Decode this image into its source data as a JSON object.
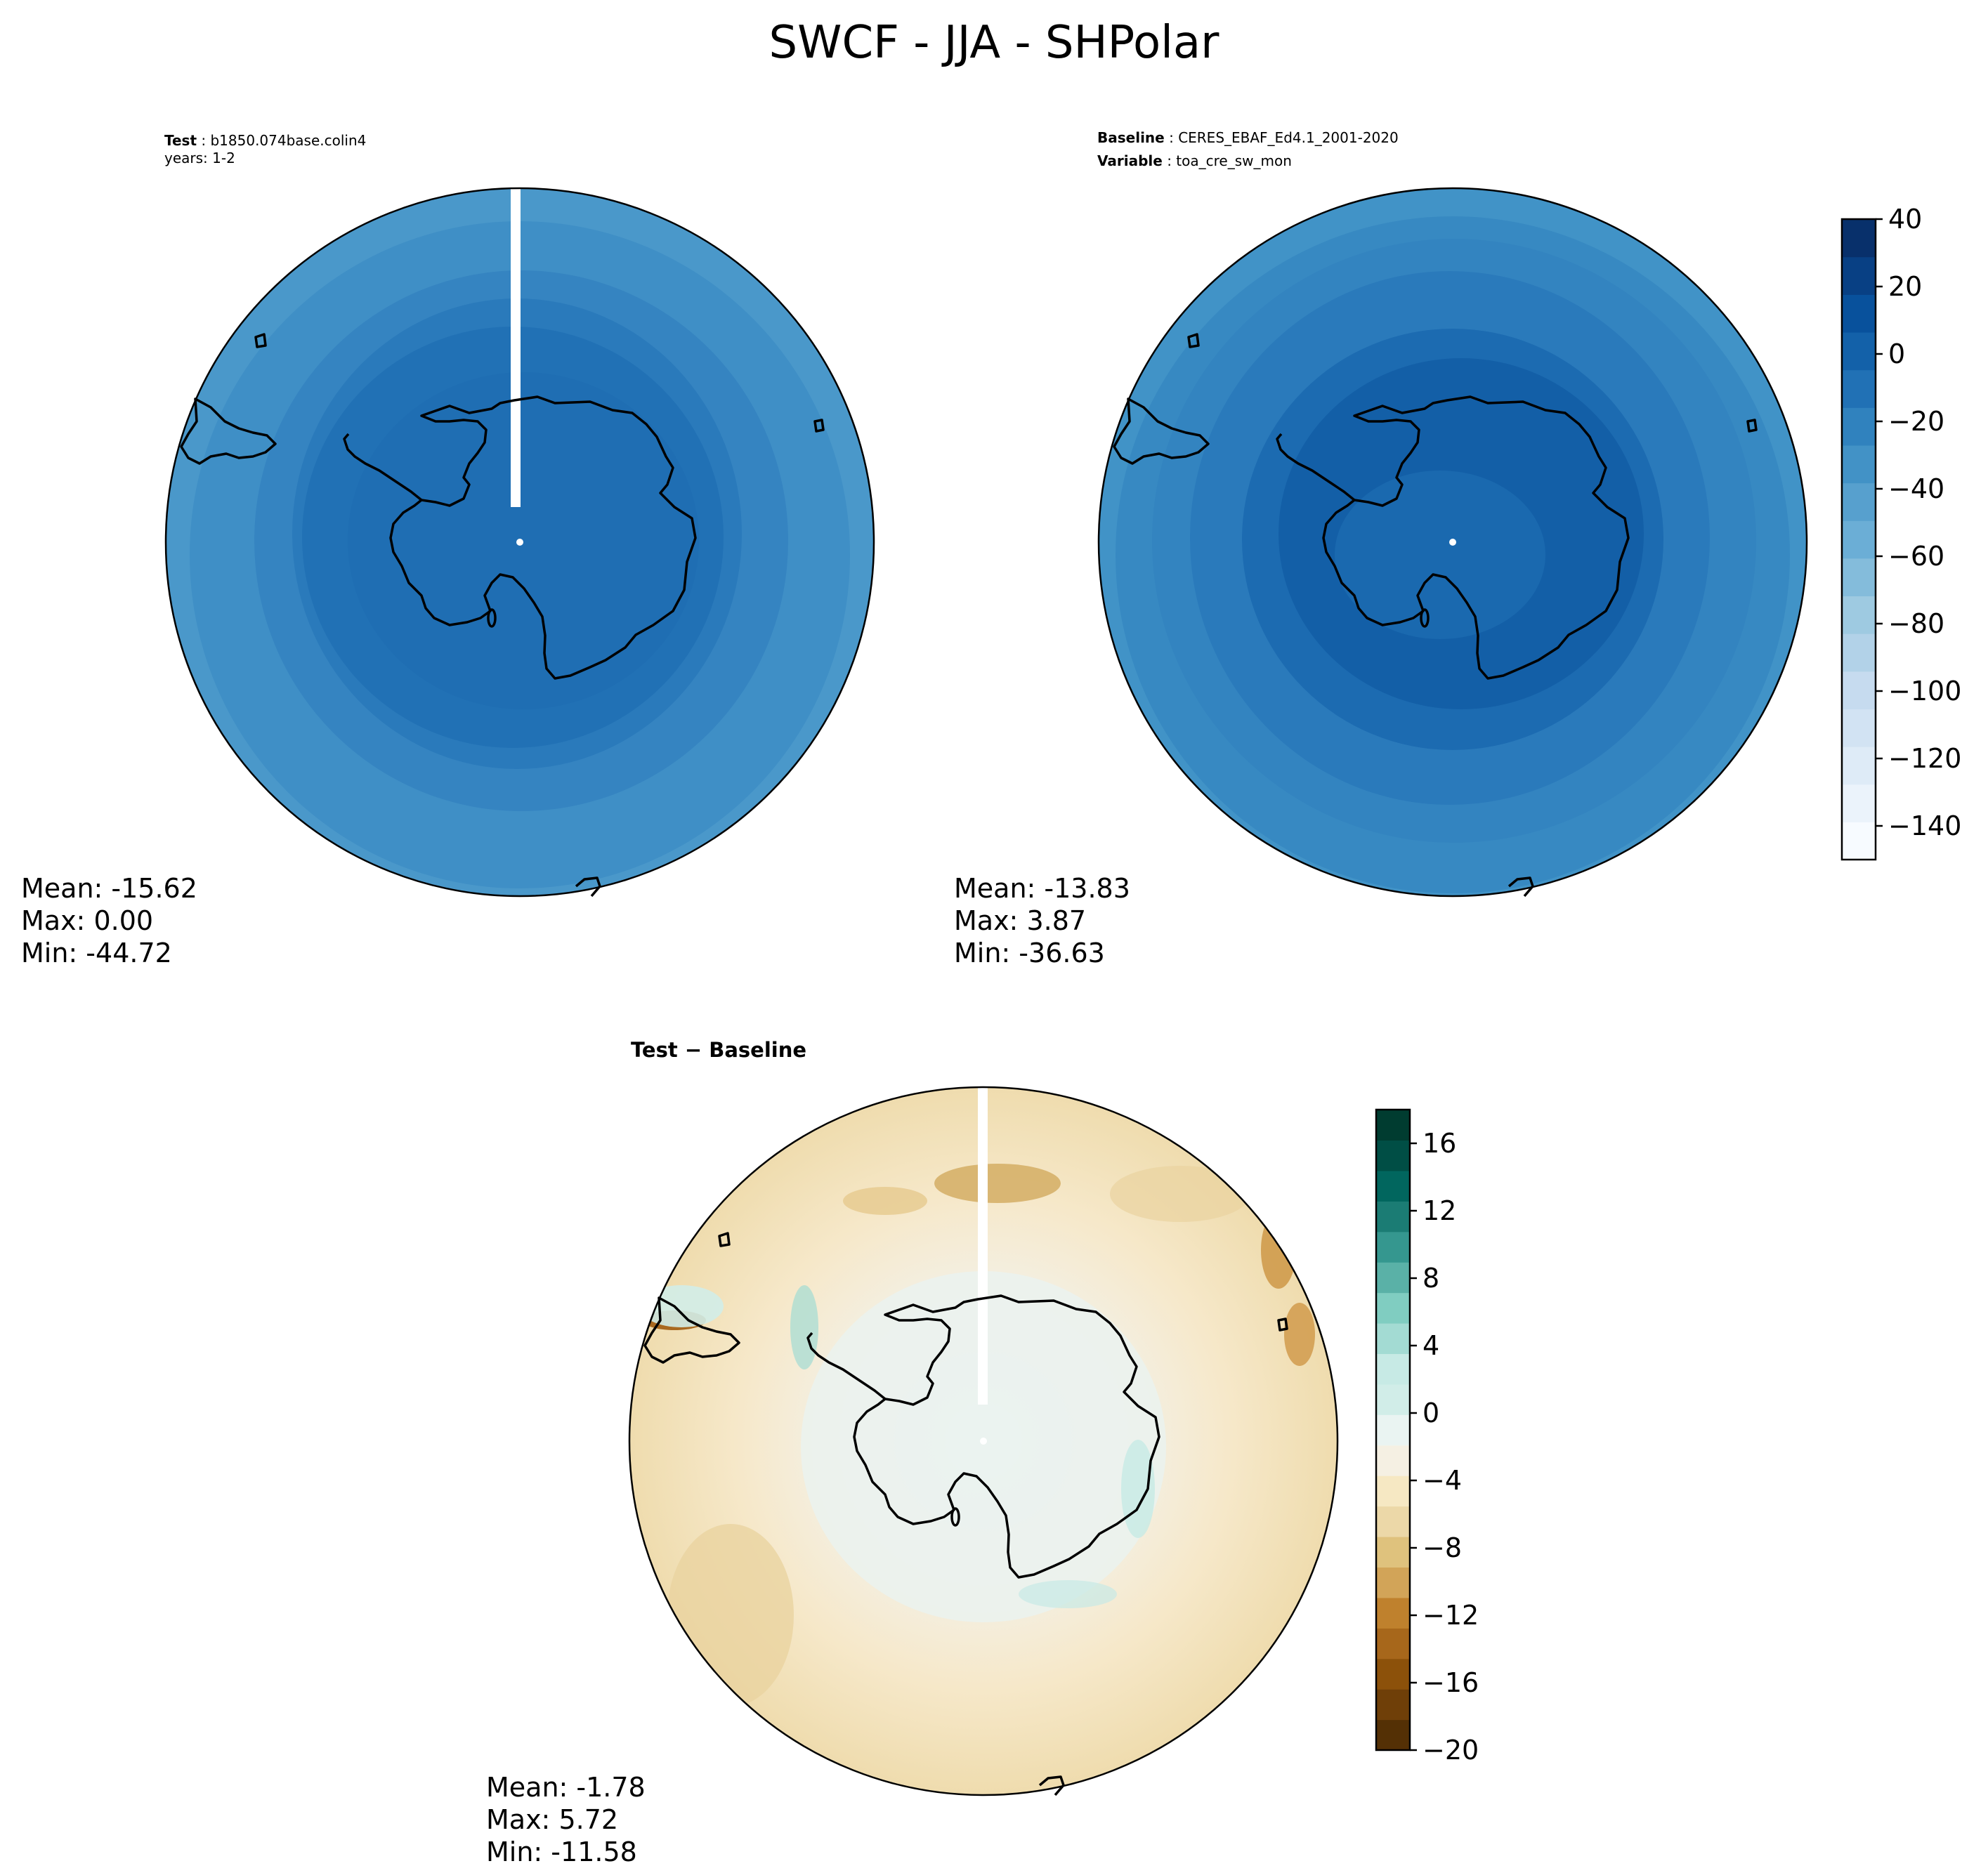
{
  "title": "SWCF - JJA - SHPolar",
  "panels": [
    {
      "id": "test",
      "header": [
        {
          "key": "Test",
          "value": "b1850.074base.colin4"
        },
        {
          "key": "",
          "value": "years: 1-2"
        }
      ],
      "stats": {
        "mean": "Mean: -15.62",
        "max": "Max:  0.00",
        "min": "Min: -44.72"
      }
    },
    {
      "id": "baseline",
      "header": [
        {
          "key": "Baseline",
          "value": "CERES_EBAF_Ed4.1_2001-2020"
        },
        {
          "key": "Variable",
          "value": "toa_cre_sw_mon"
        }
      ],
      "stats": {
        "mean": "Mean: -13.83",
        "max": "Max:  3.87",
        "min": "Min: -36.63"
      }
    },
    {
      "id": "diff",
      "header": [
        {
          "key": "Test − Baseline",
          "value": ""
        }
      ],
      "stats": {
        "mean": "Mean: -1.78",
        "max": "Max:  5.72",
        "min": "Min: -11.58"
      }
    }
  ],
  "colorbars": [
    {
      "id": "main",
      "range": [
        -150,
        40
      ],
      "ticks": [
        40,
        20,
        0,
        -20,
        -40,
        -60,
        -80,
        -100,
        -120,
        -140
      ],
      "tick_labels": [
        "40",
        "20",
        "0",
        "−20",
        "−40",
        "−60",
        "−80",
        "−100",
        "−120",
        "−140"
      ],
      "colors": [
        "#f7fbff",
        "#ebf3fb",
        "#deebf7",
        "#d2e3f3",
        "#c6dbef",
        "#b2d2e8",
        "#9ecae1",
        "#84bcdb",
        "#6baed6",
        "#57a0ce",
        "#4292c6",
        "#3082be",
        "#2171b5",
        "#1361a9",
        "#08519c",
        "#084084",
        "#08306b"
      ]
    },
    {
      "id": "diff",
      "range": [
        -20,
        18
      ],
      "ticks": [
        16,
        12,
        8,
        4,
        0,
        -4,
        -8,
        -12,
        -16,
        -20
      ],
      "tick_labels": [
        "16",
        "12",
        "8",
        "4",
        "0",
        "−4",
        "−8",
        "−12",
        "−16",
        "−20"
      ],
      "colors": [
        "#543005",
        "#6f3f08",
        "#8c510a",
        "#a7671b",
        "#bf812d",
        "#d2a458",
        "#dfc27d",
        "#ecd8a8",
        "#f6e8c3",
        "#f5f0e3",
        "#eaf4f2",
        "#d1ede8",
        "#c7eae5",
        "#a3dbd3",
        "#80cdc1",
        "#5ab1a7",
        "#35978f",
        "#1b7c74",
        "#01665e",
        "#004e45",
        "#003c30"
      ]
    }
  ],
  "map_colors": {
    "test": [
      "#4a98ca",
      "#3a89c3",
      "#2e7fbe",
      "#2171b5",
      "#1d6cb2"
    ],
    "baseline": [
      "#4193c7",
      "#3586c1",
      "#2a7abb",
      "#1c6bb1",
      "#135fa7"
    ],
    "diff_base": "#f5ecd8"
  }
}
